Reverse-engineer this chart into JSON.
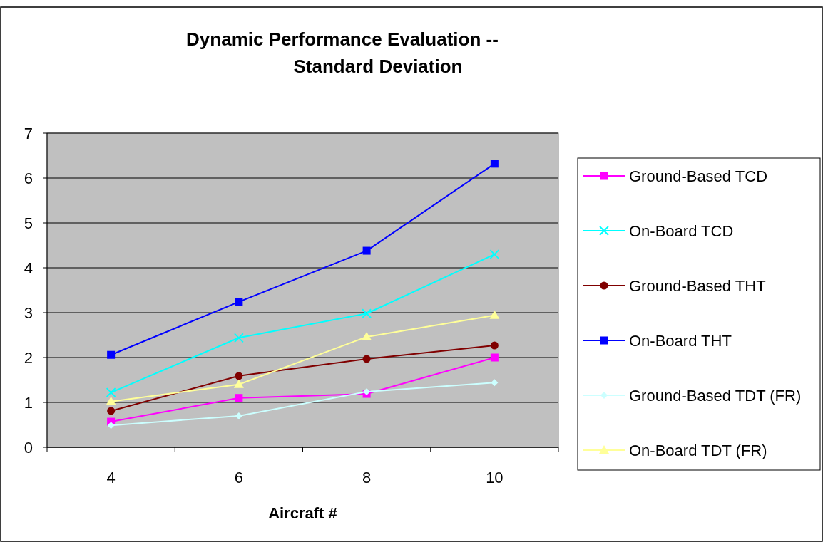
{
  "chart_data": {
    "type": "line",
    "title": "Dynamic Performance Evaluation -- Standard Deviation",
    "xlabel": "Aircraft #",
    "categories": [
      "4",
      "6",
      "8",
      "10"
    ],
    "ylim": [
      0,
      7
    ],
    "yticks": [
      0,
      1,
      2,
      3,
      4,
      5,
      6,
      7
    ],
    "grid": "y",
    "legend": "right",
    "series": [
      {
        "name": "Ground-Based TCD",
        "color": "#ff00ff",
        "marker": "square",
        "values": [
          0.57,
          1.1,
          1.19,
          2.0
        ]
      },
      {
        "name": "On-Board TCD",
        "color": "#00ffff",
        "marker": "cross",
        "values": [
          1.22,
          2.44,
          2.98,
          4.3
        ]
      },
      {
        "name": "Ground-Based THT",
        "color": "#800000",
        "marker": "circle",
        "values": [
          0.81,
          1.59,
          1.97,
          2.27
        ]
      },
      {
        "name": "On-Board THT",
        "color": "#0000ff",
        "marker": "square",
        "values": [
          2.06,
          3.24,
          4.38,
          6.32
        ]
      },
      {
        "name": "Ground-Based TDT (FR)",
        "color": "#ccffff",
        "marker": "diamond",
        "values": [
          0.49,
          0.7,
          1.24,
          1.44
        ]
      },
      {
        "name": "On-Board TDT (FR)",
        "color": "#ffff99",
        "marker": "triangle",
        "values": [
          1.02,
          1.4,
          2.46,
          2.94
        ]
      }
    ]
  }
}
